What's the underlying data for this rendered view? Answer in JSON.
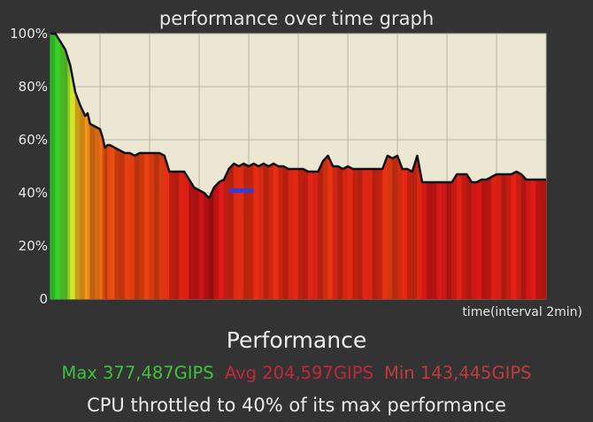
{
  "colors": {
    "background": "#333333",
    "plot_background": "#ebe7d3",
    "curve": "#111111",
    "max_text": "#3cc23c",
    "avg_text": "#c0283e",
    "min_text": "#c13a3e",
    "dip_highlight": "#3a3ad8"
  },
  "stats": {
    "heading": "Performance",
    "max": "Max 377,487GIPS",
    "avg": "Avg 204,597GIPS",
    "min": "Min 143,445GIPS",
    "throttle": "CPU throttled to 40% of its max performance"
  },
  "chart_data": {
    "type": "area",
    "title": "performance over time graph",
    "xlabel": "time(interval 2min)",
    "ylabel": "",
    "yticks": [
      "0",
      "20%",
      "40%",
      "60%",
      "80%",
      "100%"
    ],
    "ylim": [
      0,
      100
    ],
    "x_interval_minutes": 2,
    "grid": true,
    "x_gridlines": 10,
    "series": [
      {
        "x": [
          0,
          0.1,
          0.2,
          0.3,
          0.35,
          0.4,
          0.5,
          0.6,
          0.7,
          0.75,
          0.8,
          0.9,
          1.0,
          1.05,
          1.1,
          1.15,
          1.2,
          1.3,
          1.4,
          1.5,
          1.6,
          1.7,
          1.8,
          1.9,
          2.0,
          2.1,
          2.2,
          2.3,
          2.4,
          2.5,
          2.6,
          2.7,
          2.8,
          2.9,
          3.0,
          3.1,
          3.2,
          3.3,
          3.4,
          3.5,
          3.6,
          3.7,
          3.8,
          3.9,
          4.0,
          4.1,
          4.2,
          4.3,
          4.4,
          4.5,
          4.6,
          4.7,
          4.8,
          4.9,
          5.0,
          5.1,
          5.2,
          5.3,
          5.4,
          5.5,
          5.6,
          5.7,
          5.8,
          5.9,
          6.0,
          6.1,
          6.2,
          6.3,
          6.4,
          6.5,
          6.6,
          6.7,
          6.8,
          6.9,
          7.0,
          7.1,
          7.2,
          7.3,
          7.4,
          7.5,
          7.6,
          7.7,
          7.8,
          7.9,
          8.0,
          8.1,
          8.2,
          8.3,
          8.4,
          8.5,
          8.6,
          8.7,
          8.8,
          8.9,
          9.0,
          9.1,
          9.2,
          9.3,
          9.4,
          9.5,
          9.6,
          9.7,
          9.8,
          9.9,
          10.0
        ],
        "y": [
          100,
          100,
          97,
          94,
          91,
          88,
          78,
          73,
          69,
          70,
          66,
          65,
          64,
          61,
          57,
          58,
          58,
          57,
          56,
          55,
          55,
          54,
          55,
          55,
          55,
          55,
          55,
          54,
          48,
          48,
          48,
          48,
          45,
          42,
          41,
          40,
          38,
          42,
          44,
          45,
          49,
          51,
          50,
          51,
          50,
          51,
          50,
          51,
          50,
          51,
          50,
          50,
          49,
          49,
          49,
          49,
          48,
          48,
          48,
          52,
          54,
          50,
          50,
          49,
          50,
          49,
          49,
          49,
          49,
          49,
          49,
          49,
          54,
          53,
          54,
          49,
          49,
          48,
          54,
          44,
          44,
          44,
          44,
          44,
          44,
          44,
          47,
          47,
          47,
          44,
          44,
          45,
          45,
          46,
          47,
          47,
          47,
          47,
          48,
          47,
          45,
          45,
          45,
          45,
          45
        ]
      }
    ],
    "annotations": [
      {
        "type": "dip-highlight",
        "x_start": 3.6,
        "x_end": 4.1,
        "y": 41
      }
    ]
  }
}
